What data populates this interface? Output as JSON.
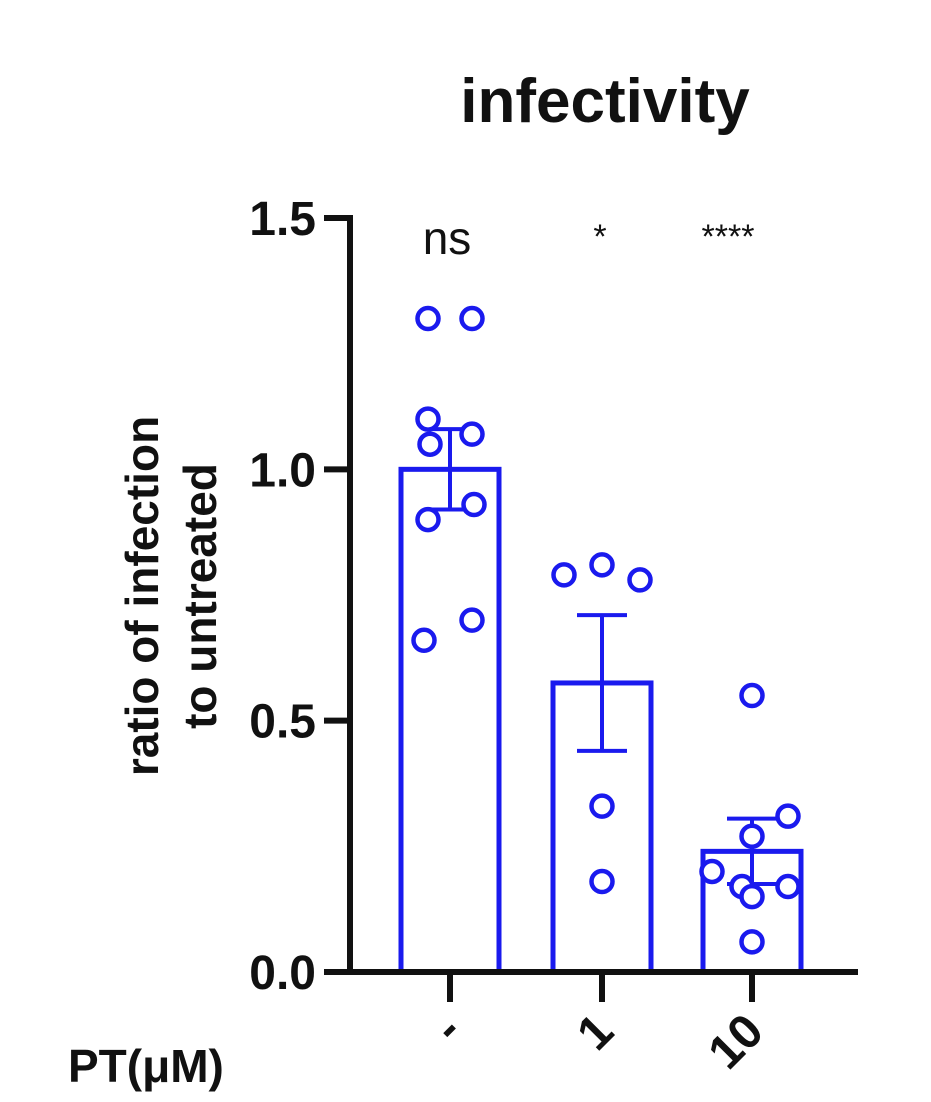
{
  "chart_data": {
    "type": "bar",
    "title": "infectivity",
    "ylabel_lines": [
      "ratio of infection",
      "to untreated"
    ],
    "xlabel": "PT(μM)",
    "categories": [
      "-",
      "1",
      "10"
    ],
    "ylim": [
      0,
      1.5
    ],
    "yticks": [
      "0.0",
      "0.5",
      "1.0",
      "1.5"
    ],
    "grid": false,
    "legend": "none",
    "series": [
      {
        "values": [
          1.0,
          0.575,
          0.24
        ],
        "sem": [
          0.08,
          0.135,
          0.065
        ],
        "points": [
          [
            1.3,
            1.3,
            1.1,
            1.05,
            1.07,
            0.93,
            0.9,
            0.66,
            0.7
          ],
          [
            0.79,
            0.81,
            0.78,
            0.33,
            0.18
          ],
          [
            0.55,
            0.31,
            0.27,
            0.2,
            0.17,
            0.17,
            0.15,
            0.06
          ]
        ]
      }
    ],
    "significance": [
      "ns",
      "*",
      "****"
    ],
    "colors": {
      "bar": "#1a1aee",
      "points": "#1a1aee",
      "axis": "#111111",
      "text": "#111111"
    }
  }
}
